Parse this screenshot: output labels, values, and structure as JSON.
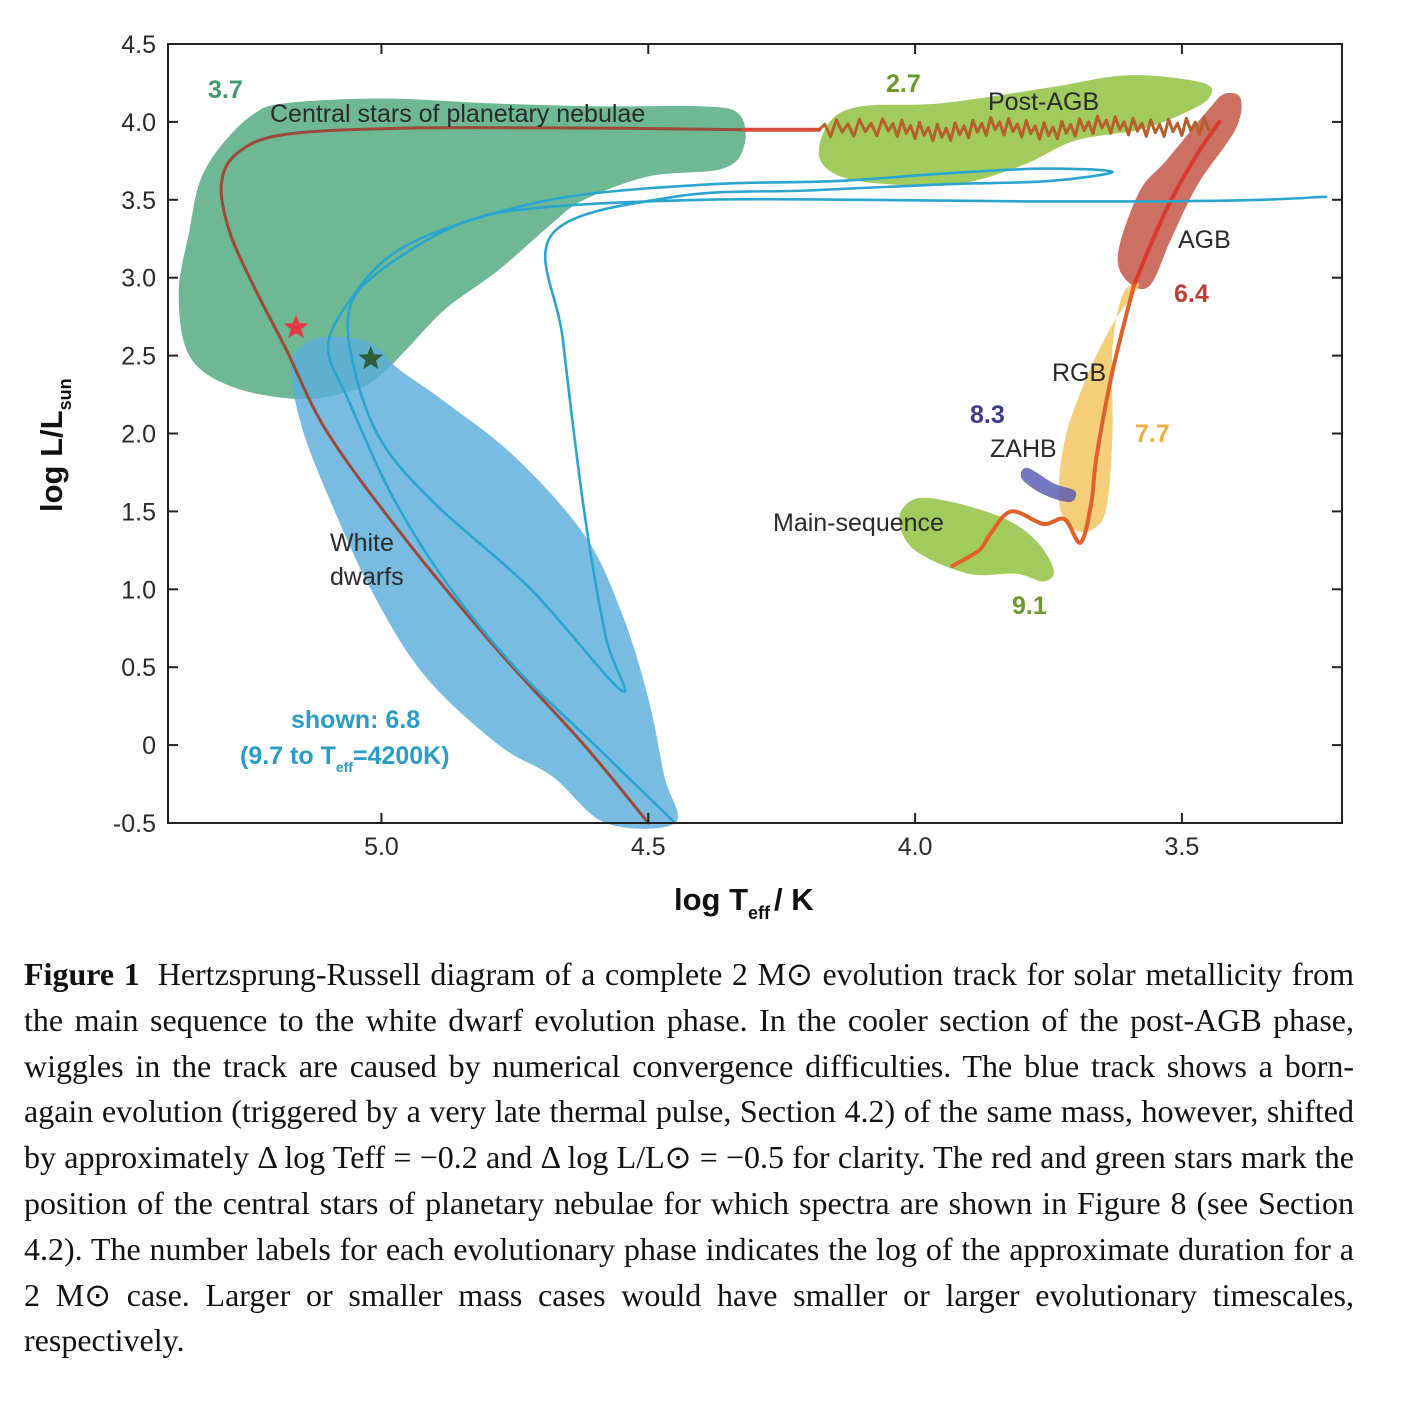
{
  "chart_data": {
    "type": "line",
    "title": "",
    "xlabel": "log T",
    "xlabel_sub": "eff",
    "xlabel_unit": "/ K",
    "ylabel": "log L/L",
    "ylabel_sub": "sun",
    "xlim": [
      5.4,
      3.2
    ],
    "ylim": [
      -0.5,
      4.5
    ],
    "x_reversed": true,
    "x_ticks": [
      {
        "value": 5.0,
        "label": "5.0"
      },
      {
        "value": 4.5,
        "label": "4.5"
      },
      {
        "value": 4.0,
        "label": "4.0"
      },
      {
        "value": 3.5,
        "label": "3.5"
      }
    ],
    "y_ticks": [
      {
        "value": 4.5,
        "label": "4.5"
      },
      {
        "value": 4.0,
        "label": "4.0"
      },
      {
        "value": 3.5,
        "label": "3.5"
      },
      {
        "value": 3.0,
        "label": "3.0"
      },
      {
        "value": 2.5,
        "label": "2.5"
      },
      {
        "value": 2.0,
        "label": "2.0"
      },
      {
        "value": 1.5,
        "label": "1.5"
      },
      {
        "value": 1.0,
        "label": "1.0"
      },
      {
        "value": 0.5,
        "label": "0.5"
      },
      {
        "value": 0,
        "label": "0"
      },
      {
        "value": -0.5,
        "label": "-0.5"
      }
    ],
    "grid": false,
    "regions": [
      {
        "name": "Central stars of planetary nebulae",
        "duration_label": "3.7",
        "color": "#4fa87c",
        "outline": [
          [
            5.34,
            3.62
          ],
          [
            5.3,
            3.85
          ],
          [
            5.24,
            4.05
          ],
          [
            5.18,
            4.12
          ],
          [
            5.0,
            4.15
          ],
          [
            4.8,
            4.12
          ],
          [
            4.6,
            4.1
          ],
          [
            4.4,
            4.1
          ],
          [
            4.33,
            4.05
          ],
          [
            4.32,
            3.85
          ],
          [
            4.36,
            3.7
          ],
          [
            4.5,
            3.65
          ],
          [
            4.62,
            3.5
          ],
          [
            4.68,
            3.35
          ],
          [
            4.78,
            3.05
          ],
          [
            4.88,
            2.8
          ],
          [
            4.95,
            2.55
          ],
          [
            5.0,
            2.38
          ],
          [
            5.05,
            2.28
          ],
          [
            5.15,
            2.22
          ],
          [
            5.28,
            2.3
          ],
          [
            5.36,
            2.5
          ],
          [
            5.38,
            2.9
          ],
          [
            5.36,
            3.3
          ]
        ]
      },
      {
        "name": "White dwarfs",
        "duration_label": "",
        "color": "#5aaedb",
        "outline": [
          [
            5.17,
            2.42
          ],
          [
            5.15,
            2.56
          ],
          [
            5.1,
            2.62
          ],
          [
            5.02,
            2.58
          ],
          [
            4.97,
            2.42
          ],
          [
            4.88,
            2.2
          ],
          [
            4.75,
            1.85
          ],
          [
            4.62,
            1.35
          ],
          [
            4.55,
            0.85
          ],
          [
            4.5,
            0.3
          ],
          [
            4.47,
            -0.2
          ],
          [
            4.45,
            -0.5
          ],
          [
            4.58,
            -0.5
          ],
          [
            4.68,
            -0.2
          ],
          [
            4.78,
            0.0
          ],
          [
            4.92,
            0.45
          ],
          [
            5.02,
            1.0
          ],
          [
            5.1,
            1.6
          ],
          [
            5.15,
            2.05
          ]
        ]
      },
      {
        "name": "Post-AGB",
        "duration_label": "2.7",
        "color": "#8ebf3a",
        "outline": [
          [
            4.18,
            3.78
          ],
          [
            4.16,
            4.0
          ],
          [
            4.1,
            4.1
          ],
          [
            3.95,
            4.12
          ],
          [
            3.75,
            4.22
          ],
          [
            3.6,
            4.3
          ],
          [
            3.46,
            4.25
          ],
          [
            3.45,
            4.15
          ],
          [
            3.5,
            4.05
          ],
          [
            3.58,
            3.95
          ],
          [
            3.7,
            3.88
          ],
          [
            3.8,
            3.72
          ],
          [
            3.92,
            3.6
          ],
          [
            4.05,
            3.6
          ],
          [
            4.14,
            3.65
          ]
        ]
      },
      {
        "name": "AGB",
        "duration_label": "6.4",
        "color": "#c0503f",
        "outline": [
          [
            3.6,
            2.97
          ],
          [
            3.62,
            3.15
          ],
          [
            3.58,
            3.55
          ],
          [
            3.53,
            3.75
          ],
          [
            3.45,
            4.08
          ],
          [
            3.42,
            4.18
          ],
          [
            3.39,
            4.15
          ],
          [
            3.4,
            3.95
          ],
          [
            3.47,
            3.6
          ],
          [
            3.52,
            3.25
          ],
          [
            3.56,
            2.95
          ]
        ]
      },
      {
        "name": "RGB",
        "duration_label": "7.7",
        "color": "#f2c35a",
        "outline": [
          [
            3.58,
            2.95
          ],
          [
            3.61,
            2.9
          ],
          [
            3.63,
            2.55
          ],
          [
            3.63,
            2.0
          ],
          [
            3.64,
            1.55
          ],
          [
            3.66,
            1.4
          ],
          [
            3.7,
            1.38
          ],
          [
            3.73,
            1.55
          ],
          [
            3.72,
            1.95
          ],
          [
            3.68,
            2.35
          ],
          [
            3.63,
            2.7
          ]
        ]
      },
      {
        "name": "ZAHB",
        "duration_label": "8.3",
        "color": "#555ab0",
        "outline": [
          [
            3.79,
            1.78
          ],
          [
            3.74,
            1.68
          ],
          [
            3.7,
            1.63
          ],
          [
            3.71,
            1.56
          ],
          [
            3.76,
            1.61
          ],
          [
            3.8,
            1.71
          ]
        ]
      },
      {
        "name": "Main-sequence",
        "duration_label": "9.1",
        "color": "#8ebf3a",
        "outline": [
          [
            4.03,
            1.45
          ],
          [
            4.0,
            1.58
          ],
          [
            3.93,
            1.56
          ],
          [
            3.83,
            1.45
          ],
          [
            3.77,
            1.3
          ],
          [
            3.74,
            1.12
          ],
          [
            3.76,
            1.05
          ],
          [
            3.81,
            1.1
          ],
          [
            3.9,
            1.1
          ],
          [
            4.0,
            1.25
          ]
        ]
      }
    ],
    "tracks": [
      {
        "name": "2 Msun track",
        "color": "#9b4a3a",
        "points": [
          [
            4.5,
            -0.5
          ],
          [
            4.62,
            0.0
          ],
          [
            4.78,
            0.6
          ],
          [
            4.95,
            1.3
          ],
          [
            5.1,
            2.0
          ],
          [
            5.18,
            2.55
          ],
          [
            5.24,
            2.95
          ],
          [
            5.285,
            3.3
          ],
          [
            5.3,
            3.6
          ],
          [
            5.27,
            3.8
          ],
          [
            5.18,
            3.92
          ],
          [
            4.95,
            3.96
          ],
          [
            4.6,
            3.96
          ],
          [
            4.32,
            3.95
          ]
        ]
      },
      {
        "name": "post-AGB track",
        "color": "#d94a3a",
        "points": [
          [
            4.32,
            3.95
          ],
          [
            4.18,
            3.95
          ]
        ]
      },
      {
        "name": "post-AGB wiggles",
        "color": "#b5602a",
        "points": [
          [
            4.18,
            3.95
          ],
          [
            4.05,
            3.96
          ],
          [
            3.95,
            3.92
          ],
          [
            3.85,
            3.97
          ],
          [
            3.75,
            3.93
          ],
          [
            3.65,
            3.98
          ],
          [
            3.55,
            3.95
          ],
          [
            3.45,
            3.97
          ]
        ]
      },
      {
        "name": "AGB track",
        "color": "#d93a30",
        "points": [
          [
            3.43,
            4.0
          ],
          [
            3.47,
            3.8
          ],
          [
            3.52,
            3.5
          ],
          [
            3.56,
            3.2
          ],
          [
            3.59,
            2.95
          ]
        ]
      },
      {
        "name": "RGB track",
        "color": "#e0602a",
        "points": [
          [
            3.59,
            2.95
          ],
          [
            3.63,
            2.4
          ],
          [
            3.66,
            1.85
          ],
          [
            3.67,
            1.55
          ],
          [
            3.69,
            1.3
          ],
          [
            3.72,
            1.45
          ],
          [
            3.76,
            1.42
          ],
          [
            3.82,
            1.5
          ],
          [
            3.86,
            1.35
          ],
          [
            3.88,
            1.25
          ],
          [
            3.93,
            1.15
          ]
        ]
      },
      {
        "name": "born-again track",
        "color": "#2aa5d0",
        "points": [
          [
            4.45,
            -0.5
          ],
          [
            4.6,
            0.0
          ],
          [
            4.75,
            0.5
          ],
          [
            4.88,
            1.05
          ],
          [
            4.98,
            1.6
          ],
          [
            5.06,
            2.2
          ],
          [
            5.1,
            2.55
          ],
          [
            5.06,
            2.85
          ],
          [
            4.98,
            3.15
          ],
          [
            4.85,
            3.35
          ],
          [
            4.65,
            3.52
          ],
          [
            4.38,
            3.6
          ],
          [
            4.15,
            3.62
          ],
          [
            3.94,
            3.67
          ],
          [
            3.76,
            3.7
          ],
          [
            3.63,
            3.68
          ],
          [
            3.75,
            3.62
          ],
          [
            3.94,
            3.6
          ],
          [
            4.2,
            3.56
          ],
          [
            4.45,
            3.52
          ],
          [
            4.68,
            3.28
          ],
          [
            4.66,
            2.6
          ],
          [
            4.62,
            1.5
          ],
          [
            4.58,
            0.7
          ],
          [
            4.55,
            0.35
          ],
          [
            4.72,
            1.0
          ],
          [
            4.9,
            1.55
          ],
          [
            5.0,
            1.95
          ],
          [
            5.05,
            2.4
          ],
          [
            5.06,
            2.8
          ],
          [
            5.0,
            3.05
          ],
          [
            4.85,
            3.35
          ],
          [
            4.7,
            3.45
          ],
          [
            4.4,
            3.5
          ],
          [
            4.1,
            3.5
          ],
          [
            3.8,
            3.49
          ],
          [
            3.55,
            3.49
          ],
          [
            3.35,
            3.5
          ],
          [
            3.23,
            3.52
          ]
        ]
      }
    ],
    "markers": [
      {
        "name": "red star",
        "x": 5.16,
        "y": 2.68,
        "color": "#e63946"
      },
      {
        "name": "green star",
        "x": 5.02,
        "y": 2.48,
        "color": "#2f5e3a"
      }
    ],
    "labels": {
      "cspn": "Central stars of planetary nebulae",
      "post_agb": "Post-AGB",
      "agb": "AGB",
      "rgb": "RGB",
      "zahb": "ZAHB",
      "main_sequence": "Main-sequence",
      "white_dwarfs_line1": "White",
      "white_dwarfs_line2": "dwarfs",
      "shown_line1": "shown: 6.8",
      "shown_line2_a": "(9.7 to T",
      "shown_line2_sub": "eff",
      "shown_line2_b": "=4200K)",
      "d_cspn": "3.7",
      "d_post_agb": "2.7",
      "d_agb": "6.4",
      "d_rgb": "7.7",
      "d_zahb": "8.3",
      "d_ms": "9.1"
    },
    "label_colors": {
      "cspn": "#3e9a6a",
      "post_agb": "#6b9a2c",
      "agb": "#c0402f",
      "rgb": "#e8b040",
      "zahb": "#3a3a8a",
      "ms": "#6b9a2c",
      "shown": "#2a9cc8"
    }
  },
  "caption": {
    "fig_label": "Figure 1",
    "text": "Hertzsprung-Russell diagram of a complete 2 M⊙ evolution track for solar metallicity from the main sequence to the white dwarf evolution phase. In the cooler section of the post-AGB phase, wiggles in the track are caused by numerical convergence difficulties. The blue track shows a born-again evolution (triggered by a very late thermal pulse, Section 4.2) of the same mass, however, shifted by approximately Δ log Teff = −0.2 and Δ log L/L⊙ = −0.5 for clarity. The red and green stars mark the position of the central stars of planetary nebulae for which spectra are shown in Figure 8 (see Section 4.2). The number labels for each evolutionary phase indicates the log of the approximate duration for a 2 M⊙ case. Larger or smaller mass cases would have smaller or larger evolutionary timescales, respectively."
  }
}
